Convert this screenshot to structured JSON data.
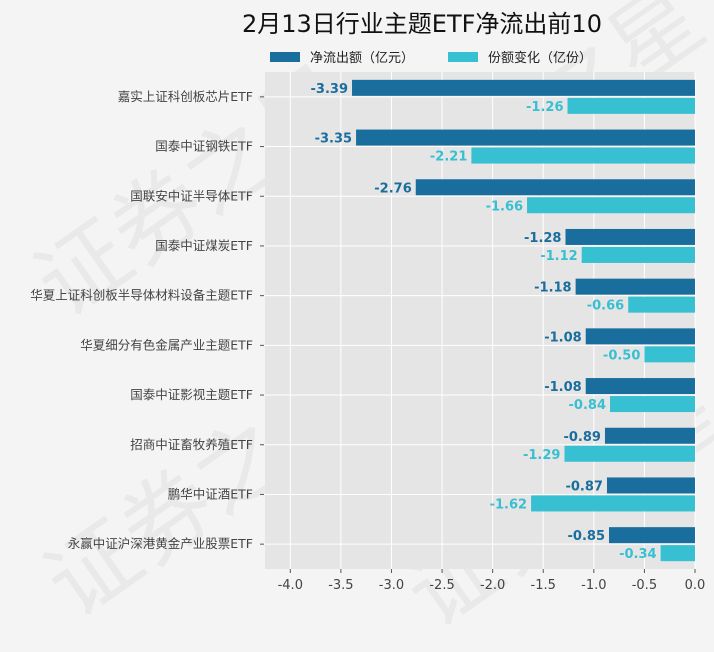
{
  "chart_data": {
    "type": "bar",
    "orientation": "horizontal",
    "title": "2月13日行业主题ETF净流出前10",
    "xlabel": "",
    "ylabel": "",
    "xlim": [
      -4.25,
      0.0
    ],
    "xticks": [
      "-4.0",
      "-3.5",
      "-3.0",
      "-2.5",
      "-2.0",
      "-1.5",
      "-1.0",
      "-0.5",
      "0.0"
    ],
    "xtick_values": [
      -4.0,
      -3.5,
      -3.0,
      -2.5,
      -2.0,
      -1.5,
      -1.0,
      -0.5,
      0.0
    ],
    "grid": true,
    "legend_position": "top",
    "categories": [
      "嘉实上证科创板芯片ETF",
      "国泰中证钢铁ETF",
      "国联安中证半导体ETF",
      "国泰中证煤炭ETF",
      "华夏上证科创板半导体材料设备主题ETF",
      "华夏细分有色金属产业主题ETF",
      "国泰中证影视主题ETF",
      "招商中证畜牧养殖ETF",
      "鹏华中证酒ETF",
      "永赢中证沪深港黄金产业股票ETF"
    ],
    "series": [
      {
        "name": "净流出额（亿元）",
        "color": "#1a6e9e",
        "values": [
          -3.39,
          -3.35,
          -2.76,
          -1.28,
          -1.18,
          -1.08,
          -1.08,
          -0.89,
          -0.87,
          -0.85
        ]
      },
      {
        "name": "份额变化（亿份）",
        "color": "#37bfd2",
        "values": [
          -1.26,
          -2.21,
          -1.66,
          -1.12,
          -0.66,
          -0.5,
          -0.84,
          -1.29,
          -1.62,
          -0.34
        ]
      }
    ]
  },
  "watermark": "证券之星"
}
